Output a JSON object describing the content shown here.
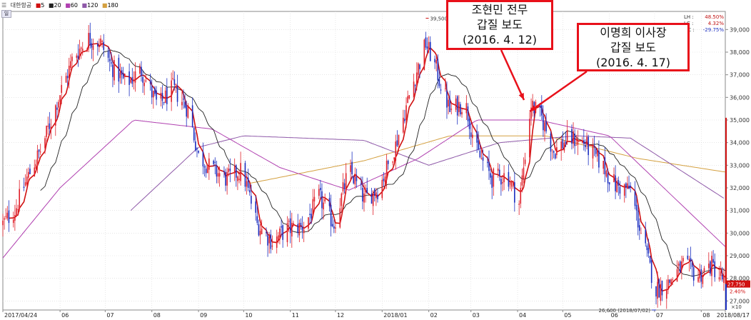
{
  "toolbar": {
    "stock_name": "대한항공",
    "ma_periods": [
      "5",
      "20",
      "60",
      "120",
      "180"
    ],
    "ma_colors": [
      "#d01010",
      "#222222",
      "#b040b0",
      "#8e58a8",
      "#d4a040"
    ],
    "menu_glyph": "☰",
    "tab_label": "일"
  },
  "info_panel": {
    "rows": [
      {
        "label": "LH :",
        "value": "48.50%"
      },
      {
        "label": "LC :",
        "value": "4.32%"
      },
      {
        "label": "HC :",
        "value": "-29.75%"
      }
    ]
  },
  "annotations": {
    "box1": {
      "lines": [
        "조현민 전무",
        "갑질 보도",
        "(2016. 4. 12)"
      ]
    },
    "box2": {
      "lines": [
        "이명희 이사장",
        "갑질 보도",
        "(2016. 4. 17)"
      ]
    }
  },
  "markers": {
    "high_label": "39,500",
    "low_label": "26,600 (2018/07/02)",
    "current_price": "27,750",
    "change_pct": "2.40%",
    "volume_unit": "×10"
  },
  "chart_data": {
    "type": "candlestick",
    "title": "",
    "xlabel": "",
    "ylabel": "",
    "ylim": [
      26600,
      39800
    ],
    "y_ticks": [
      27000,
      28000,
      29000,
      30000,
      31000,
      32000,
      33000,
      34000,
      35000,
      36000,
      37000,
      38000,
      39000
    ],
    "y_tick_labels": [
      "27,000",
      "28,000",
      "29,000",
      "30,000",
      "31,000",
      "32,000",
      "33,000",
      "34,000",
      "35,000",
      "36,000",
      "37,000",
      "38,000",
      "39,000"
    ],
    "x_tick_labels": [
      "2017/04/24",
      "06",
      "07",
      "08",
      "09",
      "10",
      "11",
      "12",
      "2018/01",
      "02",
      "03",
      "04",
      "05",
      "06",
      "07",
      "08",
      "2018/08/17"
    ],
    "colors": {
      "up": "#e0202a",
      "down": "#1c2fc0",
      "ma5": "#d01010",
      "ma20": "#222222",
      "ma60": "#b040b0",
      "ma120": "#8e58a8",
      "ma180": "#d4a040",
      "axis": "#888888",
      "grid": "#d8d8d8"
    },
    "close_keypoints": [
      {
        "date": "2017-04-24",
        "close": 30400
      },
      {
        "date": "2017-05-02",
        "close": 31000
      },
      {
        "date": "2017-05-10",
        "close": 32400
      },
      {
        "date": "2017-05-20",
        "close": 33800
      },
      {
        "date": "2017-05-30",
        "close": 35800
      },
      {
        "date": "2017-06-10",
        "close": 37800
      },
      {
        "date": "2017-06-20",
        "close": 38600
      },
      {
        "date": "2017-06-28",
        "close": 38400
      },
      {
        "date": "2017-07-05",
        "close": 37400
      },
      {
        "date": "2017-07-15",
        "close": 36600
      },
      {
        "date": "2017-07-25",
        "close": 37200
      },
      {
        "date": "2017-08-05",
        "close": 35600
      },
      {
        "date": "2017-08-15",
        "close": 36400
      },
      {
        "date": "2017-08-25",
        "close": 35500
      },
      {
        "date": "2017-09-01",
        "close": 33400
      },
      {
        "date": "2017-09-10",
        "close": 32800
      },
      {
        "date": "2017-09-20",
        "close": 32400
      },
      {
        "date": "2017-09-30",
        "close": 32800
      },
      {
        "date": "2017-10-10",
        "close": 30400
      },
      {
        "date": "2017-10-20",
        "close": 29600
      },
      {
        "date": "2017-10-30",
        "close": 30200
      },
      {
        "date": "2017-11-10",
        "close": 30300
      },
      {
        "date": "2017-11-20",
        "close": 31600
      },
      {
        "date": "2017-11-30",
        "close": 30400
      },
      {
        "date": "2017-12-10",
        "close": 32800
      },
      {
        "date": "2017-12-20",
        "close": 31500
      },
      {
        "date": "2017-12-30",
        "close": 32000
      },
      {
        "date": "2018-01-10",
        "close": 33900
      },
      {
        "date": "2018-01-20",
        "close": 36300
      },
      {
        "date": "2018-01-30",
        "close": 38400
      },
      {
        "date": "2018-02-05",
        "close": 37400
      },
      {
        "date": "2018-02-15",
        "close": 35400
      },
      {
        "date": "2018-02-25",
        "close": 35800
      },
      {
        "date": "2018-03-05",
        "close": 33600
      },
      {
        "date": "2018-03-15",
        "close": 32400
      },
      {
        "date": "2018-03-25",
        "close": 32600
      },
      {
        "date": "2018-04-02",
        "close": 31300
      },
      {
        "date": "2018-04-10",
        "close": 35700
      },
      {
        "date": "2018-04-17",
        "close": 35100
      },
      {
        "date": "2018-04-25",
        "close": 33600
      },
      {
        "date": "2018-05-05",
        "close": 34200
      },
      {
        "date": "2018-05-15",
        "close": 34000
      },
      {
        "date": "2018-05-25",
        "close": 33200
      },
      {
        "date": "2018-06-05",
        "close": 32100
      },
      {
        "date": "2018-06-15",
        "close": 31900
      },
      {
        "date": "2018-06-25",
        "close": 29200
      },
      {
        "date": "2018-07-02",
        "close": 27500
      },
      {
        "date": "2018-07-10",
        "close": 27800
      },
      {
        "date": "2018-07-20",
        "close": 28600
      },
      {
        "date": "2018-07-30",
        "close": 28100
      },
      {
        "date": "2018-08-08",
        "close": 28600
      },
      {
        "date": "2018-08-17",
        "close": 27750
      }
    ],
    "ma60_keypoints": [
      {
        "date": "2017-04-24",
        "value": 28900
      },
      {
        "date": "2017-06-01",
        "value": 32000
      },
      {
        "date": "2017-07-20",
        "value": 35000
      },
      {
        "date": "2017-09-10",
        "value": 34600
      },
      {
        "date": "2017-10-25",
        "value": 32900
      },
      {
        "date": "2017-12-10",
        "value": 31900
      },
      {
        "date": "2018-01-25",
        "value": 33300
      },
      {
        "date": "2018-03-05",
        "value": 35000
      },
      {
        "date": "2018-04-15",
        "value": 35000
      },
      {
        "date": "2018-06-01",
        "value": 34300
      },
      {
        "date": "2018-07-15",
        "value": 31500
      },
      {
        "date": "2018-08-17",
        "value": 29400
      }
    ],
    "ma120_keypoints": [
      {
        "date": "2017-07-18",
        "value": 31000
      },
      {
        "date": "2017-09-01",
        "value": 33800
      },
      {
        "date": "2017-10-01",
        "value": 34300
      },
      {
        "date": "2017-12-20",
        "value": 34100
      },
      {
        "date": "2018-02-01",
        "value": 33000
      },
      {
        "date": "2018-03-20",
        "value": 34000
      },
      {
        "date": "2018-05-10",
        "value": 34300
      },
      {
        "date": "2018-06-15",
        "value": 34200
      },
      {
        "date": "2018-08-17",
        "value": 31500
      }
    ],
    "ma180_keypoints": [
      {
        "date": "2017-10-05",
        "value": 32200
      },
      {
        "date": "2017-12-20",
        "value": 33200
      },
      {
        "date": "2018-02-15",
        "value": 34300
      },
      {
        "date": "2018-04-20",
        "value": 34300
      },
      {
        "date": "2018-06-20",
        "value": 33300
      },
      {
        "date": "2018-08-17",
        "value": 32700
      }
    ]
  }
}
